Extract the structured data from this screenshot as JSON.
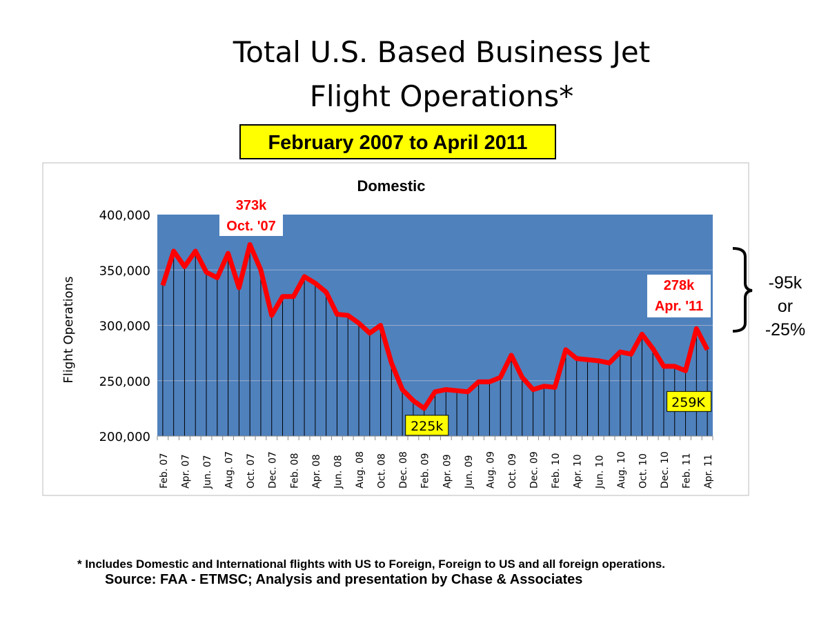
{
  "page": {
    "title_line1": "Total U.S. Based Business Jet",
    "title_line2": "Flight Operations*",
    "date_range": "February 2007 to April 2011",
    "footnote": "* Includes Domestic and International flights  with US to Foreign, Foreign to US and all foreign operations.",
    "source": "Source: FAA - ETMSC; Analysis and presentation by Chase & Associates",
    "change_line1": "-95k",
    "change_line2": "or",
    "change_line3": "-25%"
  },
  "colors": {
    "plot_bg": "#4f81bd",
    "line": "#ff0000",
    "highlight": "#ffff00",
    "label_red": "#ff0000"
  },
  "chart_data": {
    "type": "line",
    "title": "Domestic",
    "xlabel": "",
    "ylabel": "Flight Operations",
    "ylim": [
      200000,
      400000
    ],
    "yticks": [
      "200,000",
      "250,000",
      "300,000",
      "350,000",
      "400,000"
    ],
    "grid": true,
    "x": [
      "Feb. 07",
      "Mar. 07",
      "Apr. 07",
      "May 07",
      "Jun. 07",
      "Jul. 07",
      "Aug. 07",
      "Sep. 07",
      "Oct. 07",
      "Nov. 07",
      "Dec. 07",
      "Jan. 08",
      "Feb. 08",
      "Mar. 08",
      "Apr. 08",
      "May 08",
      "Jun. 08",
      "Jul. 08",
      "Aug. 08",
      "Sep. 08",
      "Oct. 08",
      "Nov. 08",
      "Dec. 08",
      "Jan. 09",
      "Feb. 09",
      "Mar. 09",
      "Apr. 09",
      "May 09",
      "Jun. 09",
      "Jul. 09",
      "Aug. 09",
      "Sep. 09",
      "Oct. 09",
      "Nov. 09",
      "Dec. 09",
      "Jan. 10",
      "Feb. 10",
      "Mar. 10",
      "Apr. 10",
      "May 10",
      "Jun. 10",
      "Jul. 10",
      "Aug. 10",
      "Sep. 10",
      "Oct. 10",
      "Nov. 10",
      "Dec. 10",
      "Jan. 11",
      "Feb. 11",
      "Mar. 11",
      "Apr. 11"
    ],
    "xtick_labels": [
      "Feb. 07",
      "Apr. 07",
      "Jun. 07",
      "Aug. 07",
      "Oct. 07",
      "Dec. 07",
      "Feb. 08",
      "Apr. 08",
      "Jun. 08",
      "Aug. 08",
      "Oct. 08",
      "Dec. 08",
      "Feb. 09",
      "Apr. 09",
      "Jun. 09",
      "Aug. 09",
      "Oct. 09",
      "Dec. 09",
      "Feb. 10",
      "Apr. 10",
      "Jun. 10",
      "Aug. 10",
      "Oct. 10",
      "Dec. 10",
      "Feb. 11",
      "Apr. 11"
    ],
    "series": [
      {
        "name": "Domestic",
        "values": [
          336000,
          367000,
          353000,
          367000,
          348000,
          343000,
          365000,
          334000,
          373000,
          350000,
          309000,
          326000,
          326000,
          344000,
          338000,
          330000,
          310000,
          309000,
          302000,
          293000,
          300000,
          266000,
          242000,
          232000,
          225000,
          240000,
          242000,
          241000,
          240000,
          249000,
          249000,
          253000,
          273000,
          253000,
          242000,
          245000,
          244000,
          278000,
          270000,
          269000,
          268000,
          266000,
          276000,
          274000,
          292000,
          279000,
          263000,
          263000,
          259000,
          297000,
          278000
        ]
      }
    ],
    "annotations": [
      {
        "index": 8,
        "line1": "373k",
        "line2": "Oct. '07",
        "style": "red-on-white"
      },
      {
        "index": 24,
        "text": "225k",
        "style": "yellow"
      },
      {
        "index": 48,
        "text": "259K",
        "style": "yellow"
      },
      {
        "index": 50,
        "line1": "278k",
        "line2": "Apr. '11",
        "style": "red-on-white"
      }
    ]
  }
}
